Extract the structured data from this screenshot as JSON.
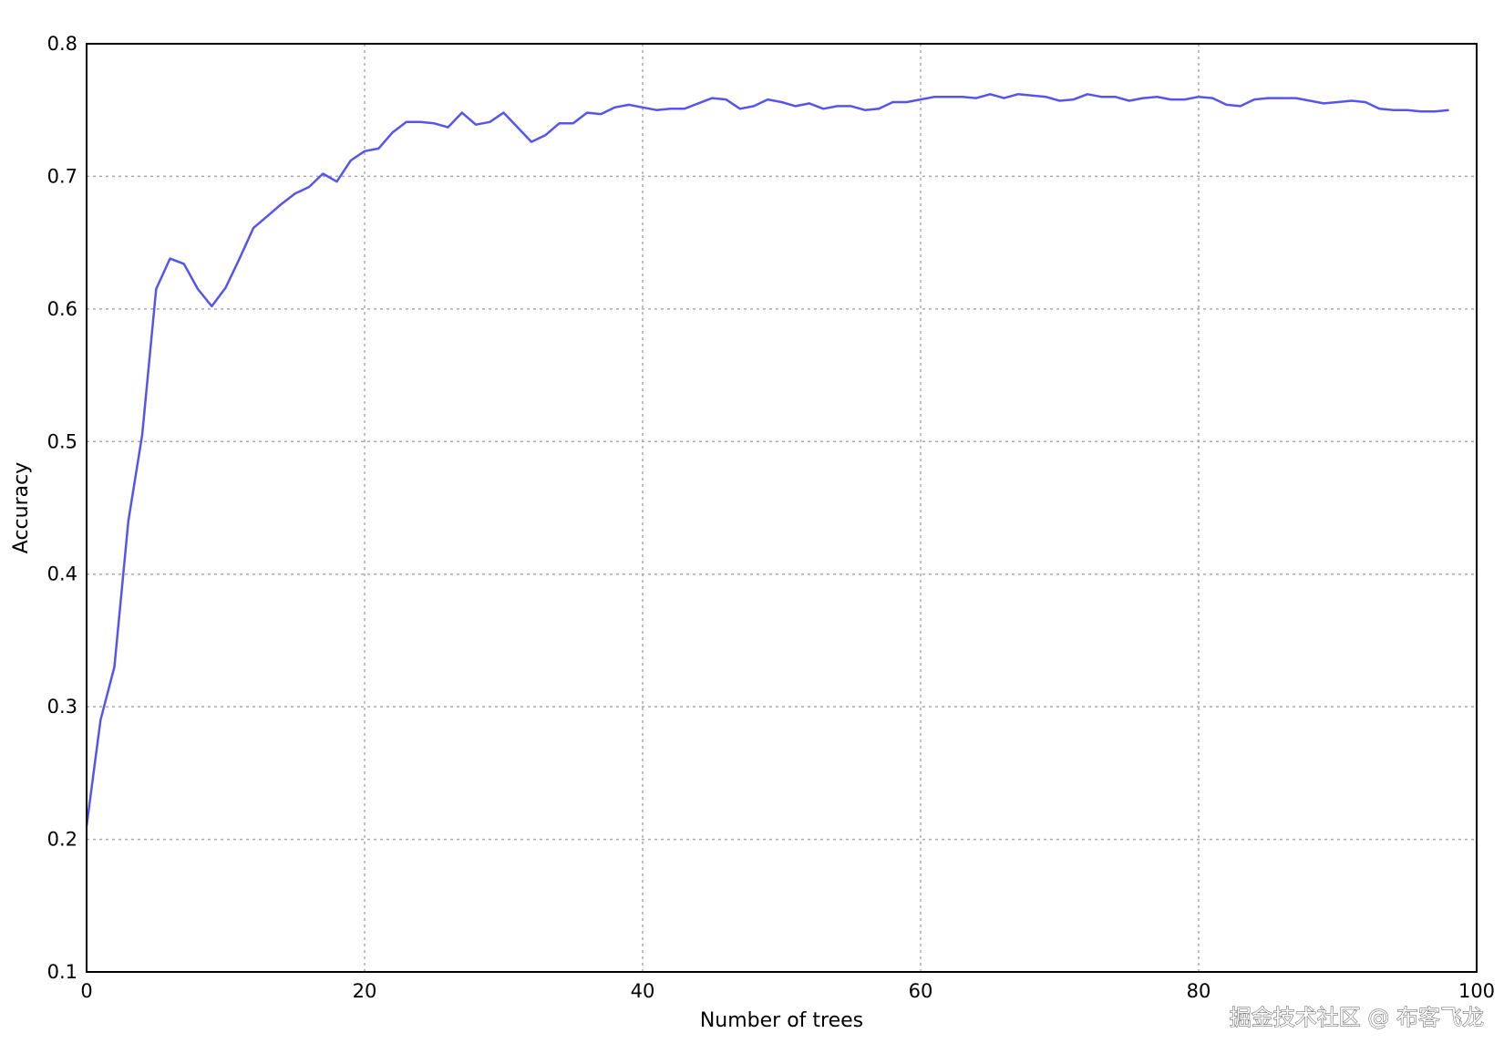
{
  "chart_data": {
    "type": "line",
    "title": "",
    "xlabel": "Number of trees",
    "ylabel": "Accuracy",
    "xlim": [
      0,
      100
    ],
    "ylim": [
      0.1,
      0.8
    ],
    "xticks": [
      0,
      20,
      40,
      60,
      80,
      100
    ],
    "yticks": [
      0.1,
      0.2,
      0.3,
      0.4,
      0.5,
      0.6,
      0.7,
      0.8
    ],
    "grid": true,
    "line_color": "#5555ee",
    "x": [
      0,
      1,
      2,
      3,
      4,
      5,
      6,
      7,
      8,
      9,
      10,
      11,
      12,
      13,
      14,
      15,
      16,
      17,
      18,
      19,
      20,
      21,
      22,
      23,
      24,
      25,
      26,
      27,
      28,
      29,
      30,
      31,
      32,
      33,
      34,
      35,
      36,
      37,
      38,
      39,
      40,
      41,
      42,
      43,
      44,
      45,
      46,
      47,
      48,
      49,
      50,
      51,
      52,
      53,
      54,
      55,
      56,
      57,
      58,
      59,
      60,
      61,
      62,
      63,
      64,
      65,
      66,
      67,
      68,
      69,
      70,
      71,
      72,
      73,
      74,
      75,
      76,
      77,
      78,
      79,
      80,
      81,
      82,
      83,
      84,
      85,
      86,
      87,
      88,
      89,
      90,
      91,
      92,
      93,
      94,
      95,
      96,
      97,
      98
    ],
    "y": [
      0.21,
      0.29,
      0.33,
      0.44,
      0.505,
      0.615,
      0.638,
      0.634,
      0.615,
      0.602,
      0.616,
      0.638,
      0.661,
      0.67,
      0.679,
      0.687,
      0.692,
      0.702,
      0.696,
      0.712,
      0.719,
      0.721,
      0.733,
      0.741,
      0.741,
      0.74,
      0.737,
      0.748,
      0.739,
      0.741,
      0.748,
      0.737,
      0.726,
      0.731,
      0.74,
      0.74,
      0.748,
      0.747,
      0.752,
      0.754,
      0.752,
      0.75,
      0.751,
      0.751,
      0.755,
      0.759,
      0.758,
      0.751,
      0.753,
      0.758,
      0.756,
      0.753,
      0.755,
      0.751,
      0.753,
      0.753,
      0.75,
      0.751,
      0.756,
      0.756,
      0.758,
      0.76,
      0.76,
      0.76,
      0.759,
      0.762,
      0.759,
      0.762,
      0.761,
      0.76,
      0.757,
      0.758,
      0.762,
      0.76,
      0.76,
      0.757,
      0.759,
      0.76,
      0.758,
      0.758,
      0.76,
      0.759,
      0.754,
      0.753,
      0.758,
      0.759,
      0.759,
      0.759,
      0.757,
      0.755,
      0.756,
      0.757,
      0.756,
      0.751,
      0.75,
      0.75,
      0.749,
      0.749,
      0.75
    ]
  },
  "watermark": "掘金技术社区 @ 布客飞龙"
}
